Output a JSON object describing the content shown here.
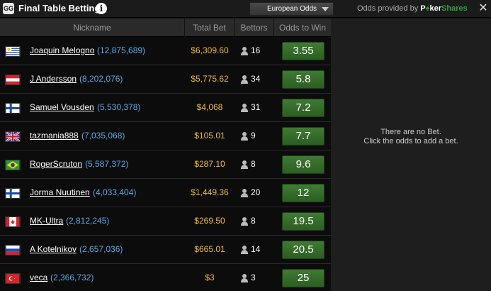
{
  "window": {
    "logo_text": "GG",
    "title": "Final Table Betting",
    "info_icon": "i",
    "close_icon": "✕"
  },
  "odds_format": {
    "selected": "European Odds"
  },
  "provider": {
    "prefix": "Odds provided by",
    "brand_poker": "P",
    "brand_spade": "♠",
    "brand_ker": "ker",
    "brand_shares": "Shares"
  },
  "table": {
    "headers": {
      "nickname": "Nickname",
      "total_bet": "Total Bet",
      "bettors": "Bettors",
      "odds": "Odds to Win"
    },
    "rows": [
      {
        "flag": "uruguay",
        "nickname": "Joaquin Melogno",
        "chips": "(12,875,689)",
        "total_bet": "$6,309.60",
        "bettors": "16",
        "odds": "3.55"
      },
      {
        "flag": "austria",
        "nickname": "J Andersson",
        "chips": "(8,202,076)",
        "total_bet": "$5,775.62",
        "bettors": "34",
        "odds": "5.8"
      },
      {
        "flag": "finland",
        "nickname": "Samuel Vousden",
        "chips": "(5,530,378)",
        "total_bet": "$4,068",
        "bettors": "31",
        "odds": "7.2"
      },
      {
        "flag": "uk",
        "nickname": "tazmania888",
        "chips": "(7,035,068)",
        "total_bet": "$105.01",
        "bettors": "9",
        "odds": "7.7"
      },
      {
        "flag": "brazil",
        "nickname": "RogerScruton",
        "chips": "(5,587,372)",
        "total_bet": "$287.10",
        "bettors": "8",
        "odds": "9.6"
      },
      {
        "flag": "finland",
        "nickname": "Jorma Nuutinen",
        "chips": "(4,033,404)",
        "total_bet": "$1,449.36",
        "bettors": "20",
        "odds": "12"
      },
      {
        "flag": "canada",
        "nickname": "MK-Ultra",
        "chips": "(2,812,245)",
        "total_bet": "$269.50",
        "bettors": "8",
        "odds": "19.5"
      },
      {
        "flag": "russia",
        "nickname": "A Kotelnikov",
        "chips": "(2,657,036)",
        "total_bet": "$665.01",
        "bettors": "14",
        "odds": "20.5"
      },
      {
        "flag": "turkey",
        "nickname": "veca",
        "chips": "(2,366,732)",
        "total_bet": "$3",
        "bettors": "3",
        "odds": "25"
      }
    ]
  },
  "bet_slip": {
    "line1": "There are no Bet.",
    "line2": "Click the odds to add a bet."
  }
}
